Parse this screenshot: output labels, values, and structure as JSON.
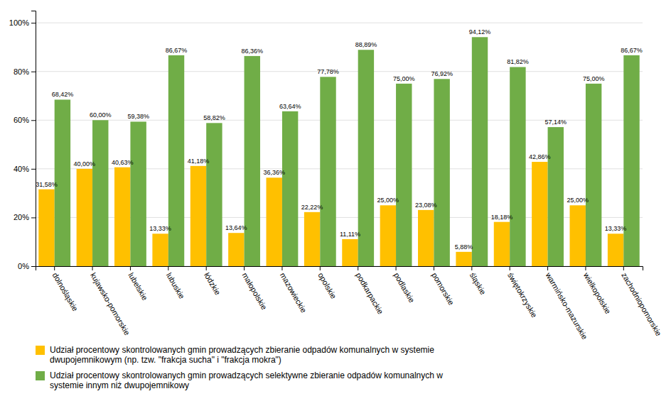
{
  "chart_data": {
    "type": "bar",
    "categories": [
      "dolnośląskie",
      "kujawsko-pomorskie",
      "lubelskie",
      "lubuskie",
      "łódzkie",
      "małopolskie",
      "mazowieckie",
      "opolskie",
      "podkarpackie",
      "podlaskie",
      "pomorskie",
      "śląskie",
      "świętokrzyskie",
      "warmińsko-mazurskie",
      "wielkopolskie",
      "zachodniopomorskie"
    ],
    "series": [
      {
        "name": "Udział procentowy skontrolowanych gmin prowadzących zbieranie odpadów komunalnych w systemie\ndwupojemnikowym (np. tzw. \"frakcja sucha\" i \"frakcja mokra\")",
        "color": "#FFC000",
        "values": [
          31.58,
          40.0,
          40.63,
          13.33,
          41.18,
          13.64,
          36.36,
          22.22,
          11.11,
          25.0,
          23.08,
          5.88,
          18.18,
          42.86,
          25.0,
          13.33
        ],
        "value_labels": [
          "31,58%",
          "40,00%",
          "40,63%",
          "13,33%",
          "41,18%",
          "13,64%",
          "36,36%",
          "22,22%",
          "11,11%",
          "25,00%",
          "23,08%",
          "5,88%",
          "18,18%",
          "42,86%",
          "25,00%",
          "13,33%"
        ]
      },
      {
        "name": "Udział procentowy skontrolowanych gmin prowadzących selektywne zbieranie odpadów komunalnych w\nsystemie innym niż dwupojemnikowy",
        "color": "#70AD47",
        "values": [
          68.42,
          60.0,
          59.38,
          86.67,
          58.82,
          86.36,
          63.64,
          77.78,
          88.89,
          75.0,
          76.92,
          94.12,
          81.82,
          57.14,
          75.0,
          86.67
        ],
        "value_labels": [
          "68,42%",
          "60,00%",
          "59,38%",
          "86,67%",
          "58,82%",
          "86,36%",
          "63,64%",
          "77,78%",
          "88,89%",
          "75,00%",
          "76,92%",
          "94,12%",
          "81,82%",
          "57,14%",
          "75,00%",
          "86,67%"
        ]
      }
    ],
    "ylim": [
      0,
      105
    ],
    "yticks": [
      {
        "value": 0,
        "label": "0%"
      },
      {
        "value": 20,
        "label": "20%"
      },
      {
        "value": 40,
        "label": "40%"
      },
      {
        "value": 60,
        "label": "60%"
      },
      {
        "value": 80,
        "label": "80%"
      },
      {
        "value": 100,
        "label": "100%"
      }
    ],
    "grid": true,
    "data_labels": true,
    "legend": "bottom"
  }
}
